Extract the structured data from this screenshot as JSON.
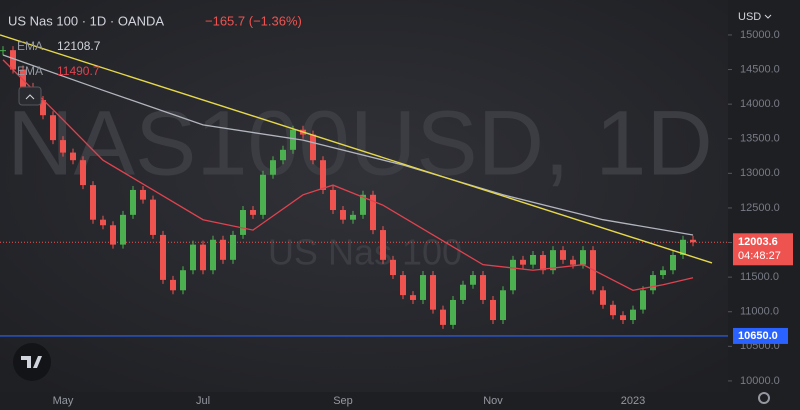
{
  "chart_data": {
    "type": "candlestick",
    "title": "US Nas 100 · 1D · OANDA",
    "change": "−165.7 (−1.36%)",
    "currency": "USD",
    "watermark": "NAS100USD, 1D",
    "watermark_sub": "US Nas 100",
    "categories": [
      null,
      null,
      null,
      null,
      null,
      null,
      "May",
      null,
      null,
      null,
      null,
      null,
      null,
      null,
      null,
      null,
      null,
      null,
      null,
      null,
      "Jul",
      null,
      null,
      null,
      null,
      null,
      null,
      null,
      null,
      null,
      null,
      null,
      null,
      null,
      "Sep",
      null,
      null,
      null,
      null,
      null,
      null,
      null,
      null,
      null,
      null,
      null,
      null,
      null,
      null,
      "Nov",
      null,
      null,
      null,
      null,
      null,
      null,
      null,
      null,
      null,
      null,
      null,
      null,
      null,
      "2023",
      null,
      null,
      null,
      null,
      null,
      null
    ],
    "series": [
      {
        "name": "US Nas 100",
        "up_color": "#4caf50",
        "down_color": "#ef5350",
        "values": [
          14780,
          14500,
          14250,
          14060,
          13840,
          13480,
          13300,
          13190,
          12830,
          12330,
          12250,
          11970,
          12400,
          12760,
          12620,
          12110,
          11460,
          11310,
          11600,
          11970,
          11600,
          12040,
          11750,
          12110,
          12470,
          12400,
          12980,
          13190,
          13340,
          13630,
          13560,
          13190,
          12760,
          12470,
          12330,
          12400,
          12690,
          12180,
          11750,
          11530,
          11240,
          11170,
          11530,
          11030,
          10810,
          11170,
          11390,
          11530,
          11170,
          10880,
          11310,
          11750,
          11680,
          11820,
          11600,
          11890,
          11750,
          11680,
          11890,
          11310,
          11100,
          10950,
          10880,
          11030,
          11310,
          11530,
          11600,
          11820,
          12040,
          12003.6
        ]
      }
    ],
    "indicators": [
      {
        "name": "EMA",
        "color": "#b2b5be",
        "x": [
          0,
          10,
          20,
          30,
          40,
          50,
          60,
          69
        ],
        "values": [
          14710,
          14200,
          13700,
          13480,
          13120,
          12690,
          12330,
          12108.7
        ]
      },
      {
        "name": "EMA",
        "color": "#e0424f",
        "x": [
          0,
          5,
          10,
          15,
          20,
          25,
          30,
          33,
          38,
          43,
          48,
          53,
          58,
          63,
          66,
          69
        ],
        "values": [
          14640,
          13920,
          13190,
          12760,
          12330,
          12180,
          12690,
          12830,
          12540,
          12110,
          11680,
          11600,
          11680,
          11310,
          11390,
          11490.7
        ]
      }
    ],
    "trendline": {
      "color": "#e6d84a",
      "x": [
        -0.3,
        70.9
      ],
      "values": [
        15000,
        11705
      ]
    },
    "level": {
      "value": 10650,
      "label": "10650.0",
      "color": "#2962ff"
    },
    "countdown": "04:48:27",
    "ylim": [
      9840,
      15505
    ],
    "yticks": [
      {
        "value": 10000,
        "label": "10000.0"
      },
      {
        "value": 10500,
        "label": "10500.0"
      },
      {
        "value": 11000,
        "label": "11000.0"
      },
      {
        "value": 11500,
        "label": "11500.0"
      },
      {
        "value": 12000,
        "label": "12000.0"
      },
      {
        "value": 12500,
        "label": "12500.0"
      },
      {
        "value": 13000,
        "label": "13000.0"
      },
      {
        "value": 13500,
        "label": "13500.0"
      },
      {
        "value": 14000,
        "label": "14000.0"
      },
      {
        "value": 14500,
        "label": "14500.0"
      },
      {
        "value": 15000,
        "label": "15000.0"
      }
    ]
  }
}
